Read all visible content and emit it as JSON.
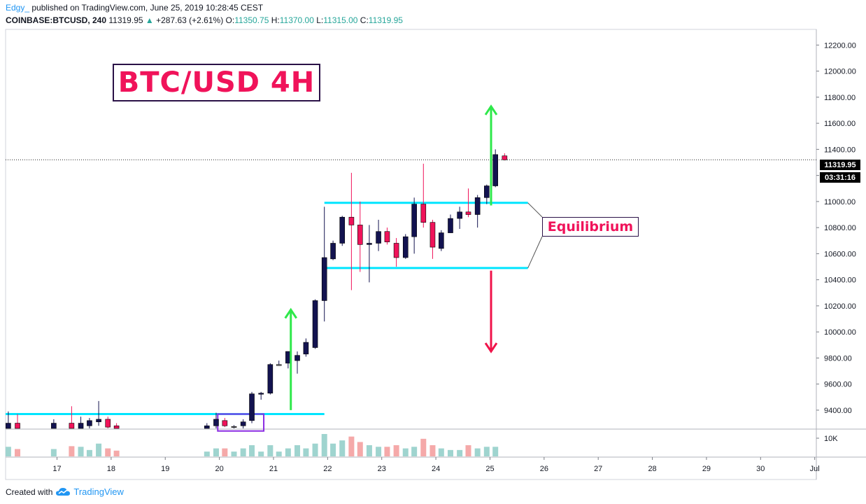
{
  "header": {
    "author": "Edgy_",
    "published": "published on TradingView.com, June 25, 2019 10:28:45 CEST",
    "symbol": "COINBASE:BTCUSD, 240",
    "last": "11319.95",
    "change": "+287.63 (+2.61%)",
    "o_label": "O:",
    "o_val": "11350.75",
    "h_label": "H:",
    "h_val": "11370.00",
    "l_label": "L:",
    "l_val": "11315.00",
    "c_label": "C:",
    "c_val": "11319.95"
  },
  "annotations": {
    "title": "BTC/USD 4H",
    "equilibrium": "Equilibrium"
  },
  "price_tags": {
    "last_price": "11319.95",
    "countdown": "03:31:16"
  },
  "footer": {
    "created_with": "Created with",
    "brand": "TradingView"
  },
  "colors": {
    "bull": "#131350",
    "bear": "#f0135a",
    "neutral": "#808080",
    "line": "#00e5ff",
    "arrow_up": "#2ee84a",
    "arrow_down": "#f0134a",
    "vol_up": "#9fd4cf",
    "vol_down": "#f5a9a9"
  },
  "chart_data": {
    "type": "candlestick",
    "y_axis": {
      "ylim": [
        9260,
        12320
      ],
      "ticks": [
        "12200.00",
        "12000.00",
        "11800.00",
        "11600.00",
        "11400.00",
        "11200.00",
        "11000.00",
        "10800.00",
        "10600.00",
        "10400.00",
        "10200.00",
        "10000.00",
        "9800.00",
        "9600.00",
        "9400.00"
      ],
      "tick_values": [
        12200,
        12000,
        11800,
        11600,
        11400,
        11200,
        11000,
        10800,
        10600,
        10400,
        10200,
        10000,
        9800,
        9600,
        9400
      ]
    },
    "x_axis": {
      "labels": [
        "17",
        "18",
        "19",
        "20",
        "21",
        "22",
        "23",
        "24",
        "25",
        "26",
        "27",
        "28",
        "29",
        "30",
        "Jul"
      ],
      "label_days": [
        17,
        18,
        19,
        20,
        21,
        22,
        23,
        24,
        25,
        26,
        27,
        28,
        29,
        30,
        31
      ],
      "day_range": [
        16.05,
        31.03
      ]
    },
    "volume_axis": {
      "tick": "10K"
    },
    "candles": [
      {
        "t": 16.1,
        "o": 9250,
        "h": 9390,
        "l": 9240,
        "c": 9300,
        "v": 3.0
      },
      {
        "t": 16.27,
        "o": 9300,
        "h": 9370,
        "l": 9250,
        "c": 9255,
        "v": 2.3
      },
      {
        "t": 16.94,
        "o": 9255,
        "h": 9330,
        "l": 9240,
        "c": 9300,
        "v": 2.3
      },
      {
        "t": 17.27,
        "o": 9300,
        "h": 9430,
        "l": 9260,
        "c": 9255,
        "v": 3.2
      },
      {
        "t": 17.44,
        "o": 9255,
        "h": 9350,
        "l": 9240,
        "c": 9300,
        "v": 3.0
      },
      {
        "t": 17.6,
        "o": 9280,
        "h": 9340,
        "l": 9250,
        "c": 9320,
        "v": 2.0
      },
      {
        "t": 17.77,
        "o": 9310,
        "h": 9470,
        "l": 9280,
        "c": 9330,
        "v": 4.0
      },
      {
        "t": 17.94,
        "o": 9330,
        "h": 9350,
        "l": 9260,
        "c": 9270,
        "v": 2.5
      },
      {
        "t": 18.1,
        "o": 9280,
        "h": 9300,
        "l": 9240,
        "c": 9260,
        "v": 1.8
      },
      {
        "t": 19.77,
        "o": 9250,
        "h": 9300,
        "l": 9230,
        "c": 9280,
        "v": 1.5
      },
      {
        "t": 19.94,
        "o": 9280,
        "h": 9380,
        "l": 9260,
        "c": 9330,
        "v": 2.5
      },
      {
        "t": 20.1,
        "o": 9320,
        "h": 9340,
        "l": 9270,
        "c": 9280,
        "v": 2.5
      },
      {
        "t": 20.27,
        "o": 9275,
        "h": 9285,
        "l": 9260,
        "c": 9275,
        "v": 1.5
      },
      {
        "t": 20.44,
        "o": 9280,
        "h": 9330,
        "l": 9260,
        "c": 9310,
        "v": 2.5
      },
      {
        "t": 20.6,
        "o": 9320,
        "h": 9540,
        "l": 9300,
        "c": 9525,
        "v": 3.5
      },
      {
        "t": 20.77,
        "o": 9525,
        "h": 9540,
        "l": 9480,
        "c": 9530,
        "v": 1.5
      },
      {
        "t": 20.94,
        "o": 9530,
        "h": 9760,
        "l": 9520,
        "c": 9750,
        "v": 3.5
      },
      {
        "t": 21.1,
        "o": 9750,
        "h": 9780,
        "l": 9740,
        "c": 9750,
        "v": 1.5
      },
      {
        "t": 21.27,
        "o": 9760,
        "h": 9850,
        "l": 9720,
        "c": 9850,
        "v": 2.5
      },
      {
        "t": 21.44,
        "o": 9780,
        "h": 9850,
        "l": 9680,
        "c": 9820,
        "v": 3.5
      },
      {
        "t": 21.6,
        "o": 9830,
        "h": 9950,
        "l": 9810,
        "c": 9920,
        "v": 2.5
      },
      {
        "t": 21.77,
        "o": 9880,
        "h": 10250,
        "l": 9870,
        "c": 10240,
        "v": 4.0
      },
      {
        "t": 21.94,
        "o": 10240,
        "h": 10960,
        "l": 10080,
        "c": 10570,
        "v": 7.0
      },
      {
        "t": 22.1,
        "o": 10560,
        "h": 10700,
        "l": 10550,
        "c": 10680,
        "v": 4.0
      },
      {
        "t": 22.27,
        "o": 10680,
        "h": 10890,
        "l": 10660,
        "c": 10880,
        "v": 5.0
      },
      {
        "t": 22.44,
        "o": 10880,
        "h": 11220,
        "l": 10320,
        "c": 10820,
        "v": 6.2
      },
      {
        "t": 22.6,
        "o": 10820,
        "h": 11000,
        "l": 10460,
        "c": 10670,
        "v": 4.5
      },
      {
        "t": 22.77,
        "o": 10670,
        "h": 10820,
        "l": 10380,
        "c": 10680,
        "v": 3.5
      },
      {
        "t": 22.94,
        "o": 10680,
        "h": 10860,
        "l": 10620,
        "c": 10770,
        "v": 3.0
      },
      {
        "t": 23.1,
        "o": 10770,
        "h": 10800,
        "l": 10670,
        "c": 10690,
        "v": 3.0
      },
      {
        "t": 23.27,
        "o": 10680,
        "h": 10720,
        "l": 10500,
        "c": 10570,
        "v": 3.5
      },
      {
        "t": 23.44,
        "o": 10570,
        "h": 10750,
        "l": 10560,
        "c": 10730,
        "v": 2.5
      },
      {
        "t": 23.6,
        "o": 10730,
        "h": 11030,
        "l": 10600,
        "c": 10980,
        "v": 3.0
      },
      {
        "t": 23.77,
        "o": 10980,
        "h": 11290,
        "l": 10800,
        "c": 10840,
        "v": 5.5
      },
      {
        "t": 23.94,
        "o": 10840,
        "h": 10860,
        "l": 10560,
        "c": 10650,
        "v": 3.5
      },
      {
        "t": 24.1,
        "o": 10640,
        "h": 10780,
        "l": 10620,
        "c": 10760,
        "v": 2.5
      },
      {
        "t": 24.27,
        "o": 10760,
        "h": 10900,
        "l": 10760,
        "c": 10870,
        "v": 2.0
      },
      {
        "t": 24.44,
        "o": 10870,
        "h": 10960,
        "l": 10790,
        "c": 10920,
        "v": 2.0
      },
      {
        "t": 24.6,
        "o": 10920,
        "h": 11100,
        "l": 10880,
        "c": 10900,
        "v": 3.5
      },
      {
        "t": 24.77,
        "o": 10900,
        "h": 11050,
        "l": 10800,
        "c": 11030,
        "v": 2.5
      },
      {
        "t": 24.94,
        "o": 11030,
        "h": 11130,
        "l": 10980,
        "c": 11120,
        "v": 3.0
      },
      {
        "t": 25.1,
        "o": 11120,
        "h": 11400,
        "l": 11110,
        "c": 11360,
        "v": 3.0
      },
      {
        "t": 25.27,
        "o": 11350,
        "h": 11370,
        "l": 11315,
        "c": 11320,
        "v": 0
      }
    ],
    "levels": {
      "low_range": {
        "price": 9370,
        "from": 16.05,
        "to": 21.94
      },
      "range_top": {
        "price": 10990,
        "from": 21.94,
        "to": 25.7
      },
      "range_bottom": {
        "price": 10490,
        "from": 21.94,
        "to": 25.7
      }
    },
    "current_price": 11319.95
  }
}
